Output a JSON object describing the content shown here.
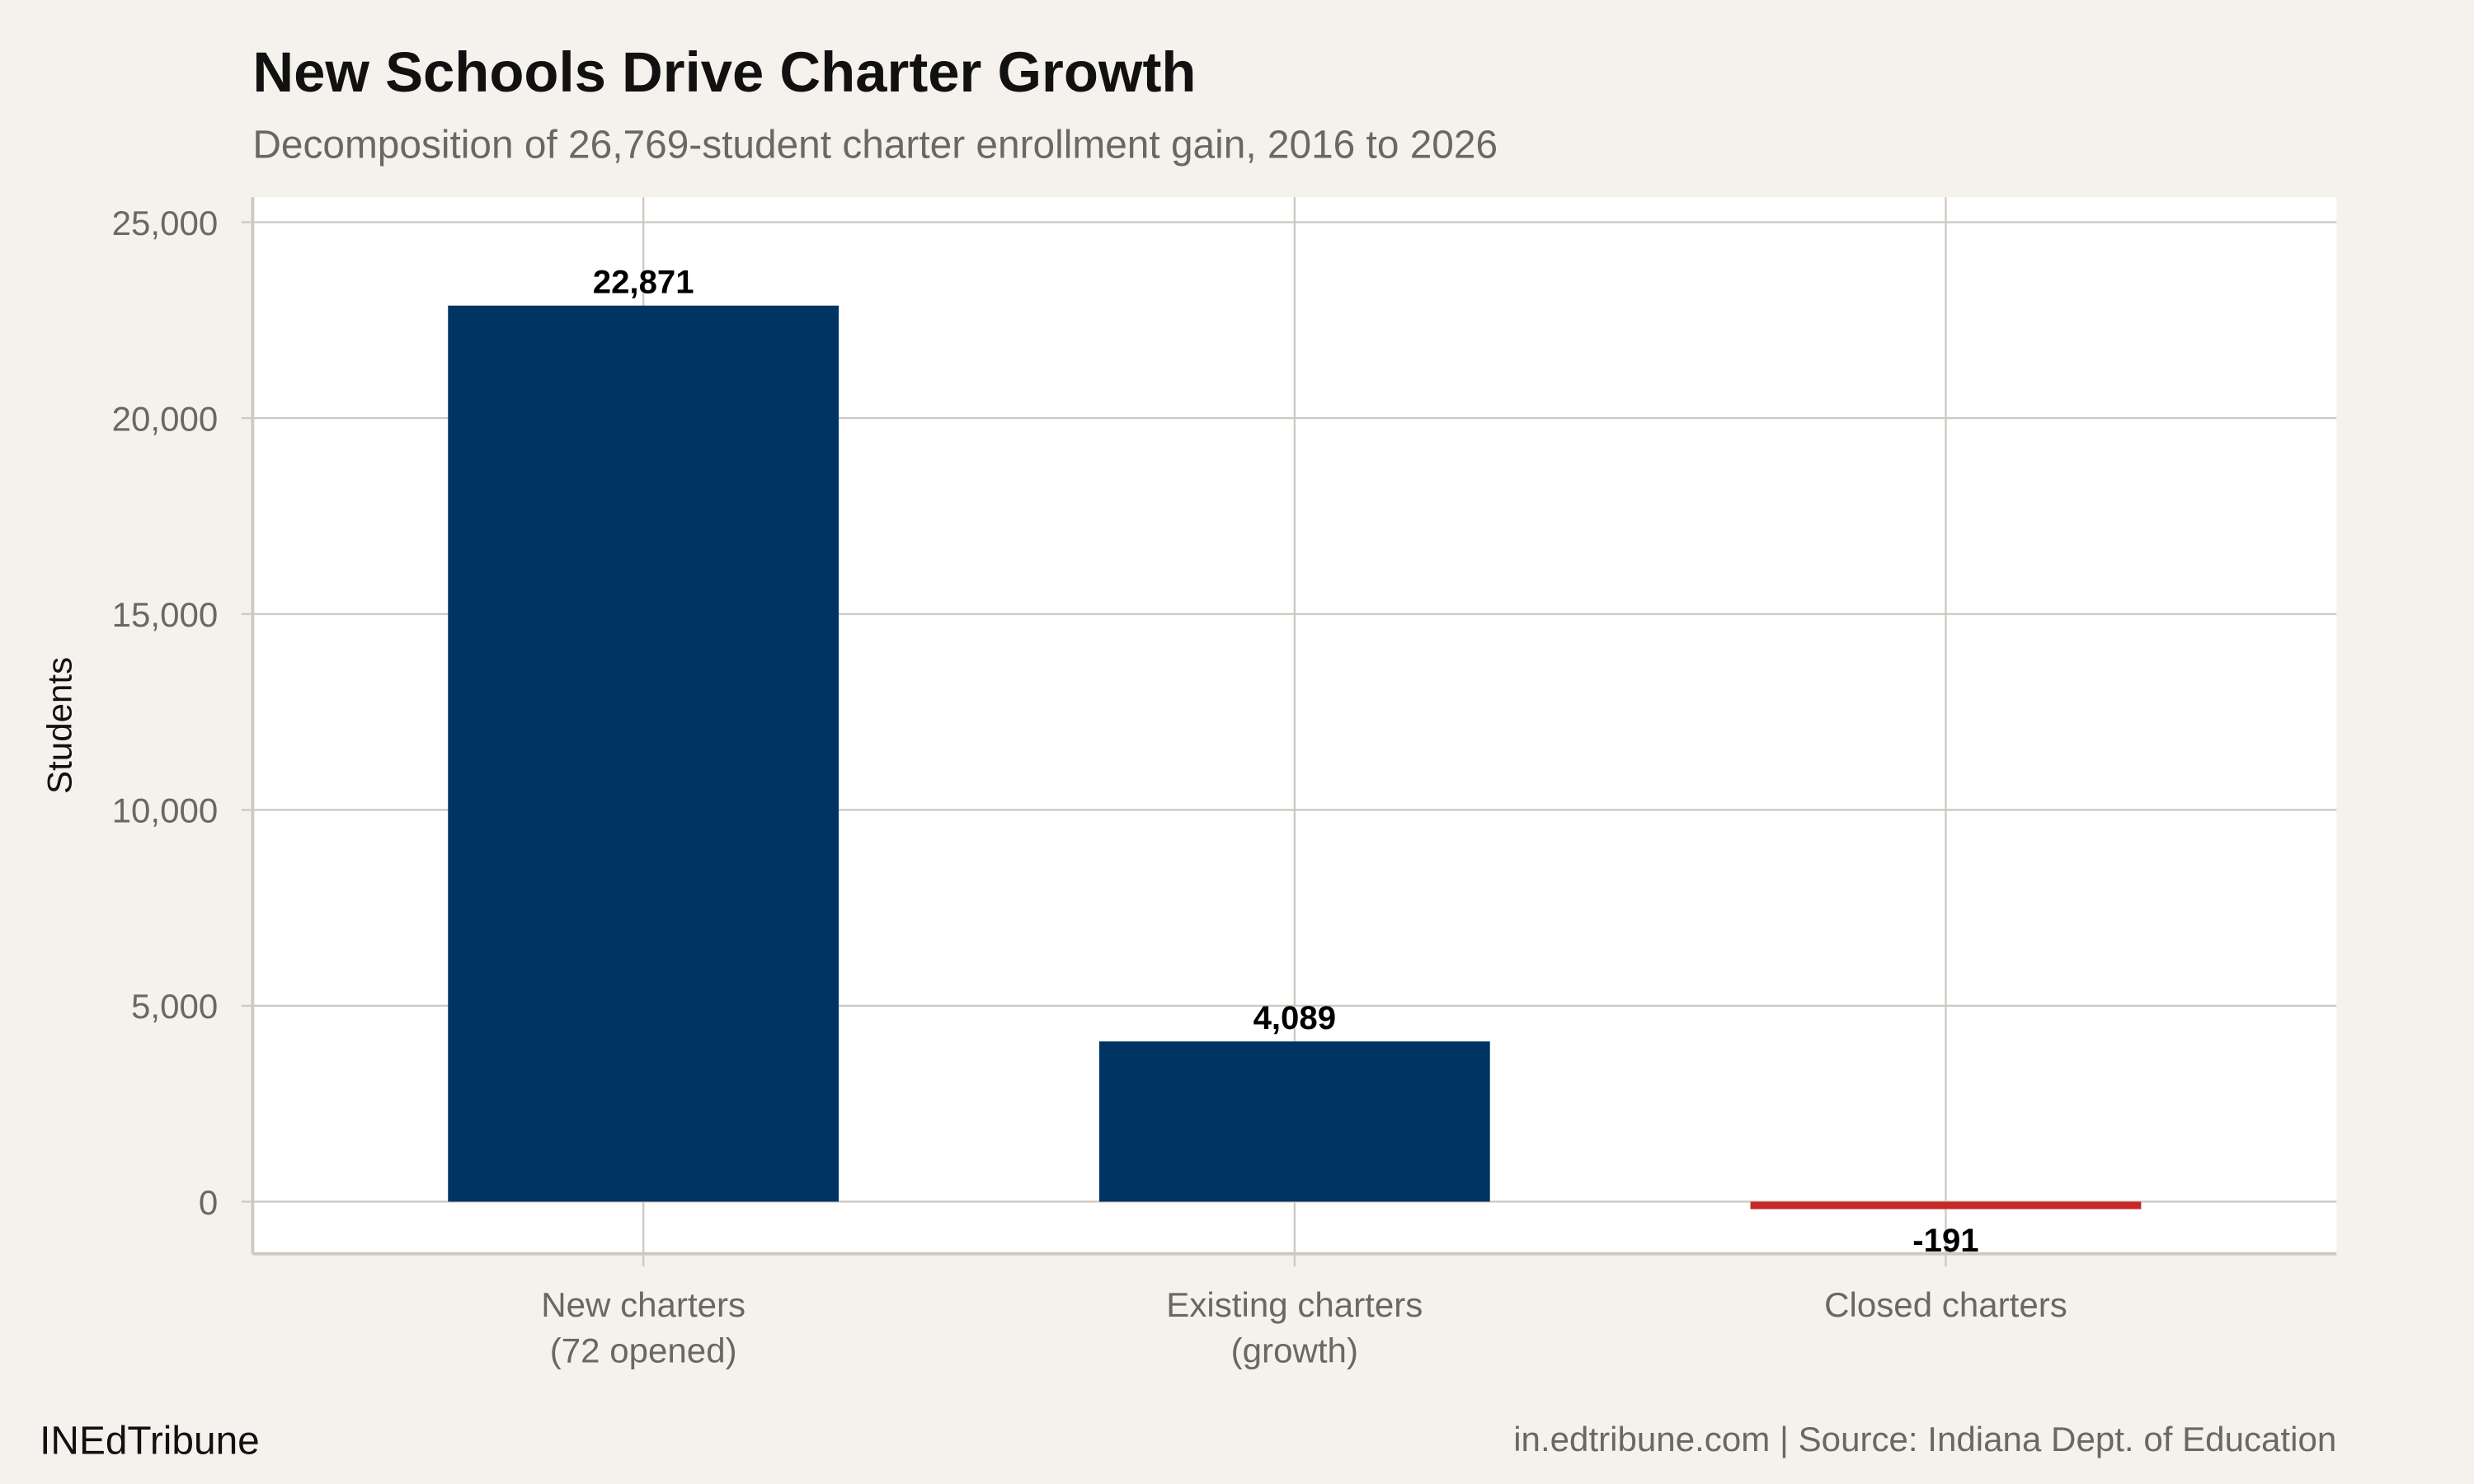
{
  "chart_data": {
    "type": "bar",
    "title": "New Schools Drive Charter Growth",
    "subtitle": "Decomposition of 26,769-student charter enrollment gain, 2016 to 2026",
    "xlabel": "",
    "ylabel": "Students",
    "categories": [
      [
        "New charters",
        "(72 opened)"
      ],
      [
        "Existing charters",
        "(growth)"
      ],
      [
        "Closed charters"
      ]
    ],
    "values": [
      22871,
      4089,
      -191
    ],
    "data_labels": [
      "22,871",
      "4,089",
      "-191"
    ],
    "bar_colors": [
      "#003462",
      "#003462",
      "#c62828"
    ],
    "ylim": [
      -1330,
      25640
    ],
    "yticks": [
      0,
      5000,
      10000,
      15000,
      20000,
      25000
    ],
    "ytick_labels": [
      "0",
      "5,000",
      "10,000",
      "15,000",
      "20,000",
      "25,000"
    ],
    "grid": true,
    "legend": "none"
  },
  "footer": {
    "brand": "INEdTribune",
    "caption": "in.edtribune.com | Source: Indiana Dept. of Education"
  },
  "colors": {
    "background": "#f5f2ed",
    "panel": "#ffffff",
    "grid": "#cdc8c0"
  }
}
